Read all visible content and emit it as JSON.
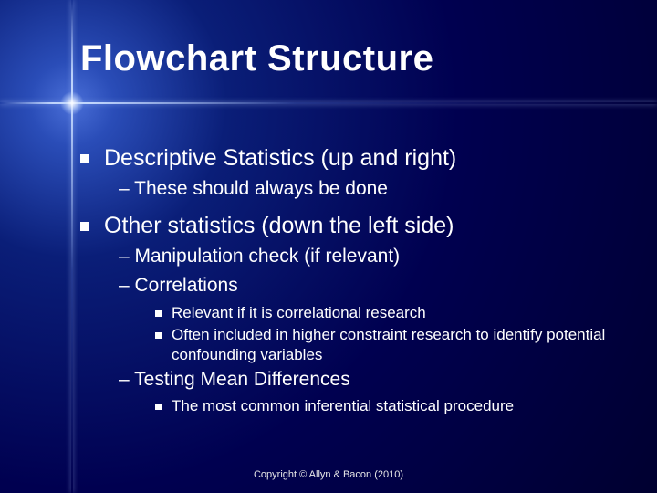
{
  "background": {
    "gradient_center": "#4a6fd8",
    "gradient_mid": "#0a1e78",
    "gradient_outer": "#000030",
    "flare_color": "#c8dcff"
  },
  "text_color": "#ffffff",
  "title": {
    "text": "Flowchart Structure",
    "fontsize": 40,
    "weight": "bold"
  },
  "bullets": [
    {
      "level": 1,
      "marker": "square",
      "text": "Descriptive Statistics (up and right)",
      "fontsize": 25
    },
    {
      "level": 2,
      "marker": "dash",
      "text": "These should always be done",
      "fontsize": 21
    },
    {
      "level": 1,
      "marker": "square",
      "text": "Other statistics (down the left side)",
      "fontsize": 25
    },
    {
      "level": 2,
      "marker": "dash",
      "text": "Manipulation check (if relevant)",
      "fontsize": 21
    },
    {
      "level": 2,
      "marker": "dash",
      "text": "Correlations",
      "fontsize": 21
    },
    {
      "level": 3,
      "marker": "square",
      "text": "Relevant if it is correlational research",
      "fontsize": 17
    },
    {
      "level": 3,
      "marker": "square",
      "text": "Often included in higher constraint research to identify potential confounding variables",
      "fontsize": 17
    },
    {
      "level": 2,
      "marker": "dash",
      "text": "Testing Mean Differences",
      "fontsize": 21
    },
    {
      "level": 3,
      "marker": "square",
      "text": "The most common inferential statistical procedure",
      "fontsize": 17
    }
  ],
  "copyright": {
    "text": "Copyright © Allyn & Bacon (2010)",
    "fontsize": 11
  }
}
